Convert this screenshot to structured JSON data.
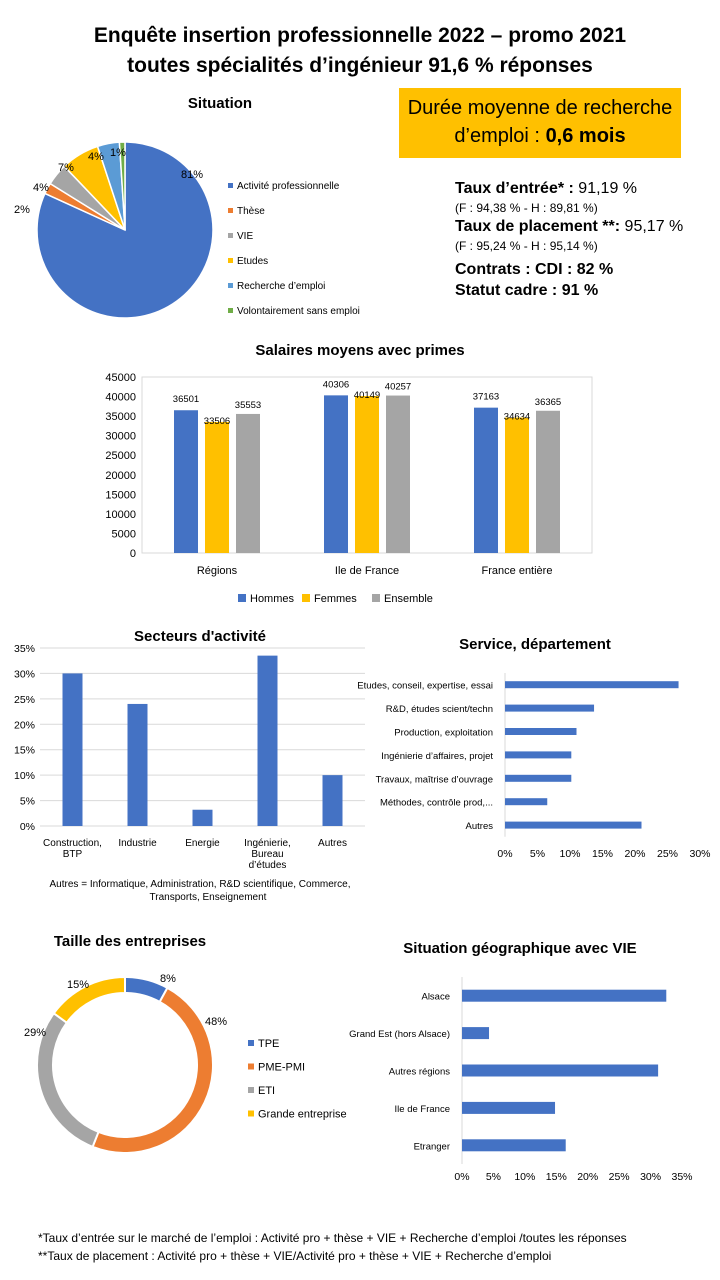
{
  "header": {
    "line1": "Enquête insertion professionnelle 2022 – promo 2021",
    "line2": "toutes spécialités d’ingénieur 91,6 % réponses"
  },
  "duree": {
    "line1": "Durée moyenne de recherche",
    "line2_prefix": "d’emploi :",
    "value": "0,6 mois"
  },
  "taux": {
    "entree_label": "Taux d’entrée* :",
    "entree_value": "91,19 %",
    "entree_detail": "(F : 94,38 % - H : 89,81 %)",
    "placement_label": "Taux de placement **:",
    "placement_value": "95,17 %",
    "placement_detail": "(F : 95,24 % - H : 95,14 %)",
    "contrats_label": "Contrats : CDI :",
    "contrats_value": "82 %",
    "cadre_label": "Statut cadre :",
    "cadre_value": "91 %"
  },
  "colors": {
    "blue": "#4472C4",
    "orange": "#ED7D31",
    "gray": "#A5A5A5",
    "yellow": "#FFC000",
    "lightblue": "#5B9BD5",
    "green": "#70AD47",
    "box": "#FFC000"
  },
  "chart_data": [
    {
      "id": "situation",
      "type": "pie",
      "title": "Situation",
      "labels": [
        "Activité professionnelle",
        "Thèse",
        "VIE",
        "Etudes",
        "Recherche d’emploi",
        "Volontairement sans emploi"
      ],
      "values": [
        81,
        2,
        4,
        7,
        4,
        1
      ],
      "value_labels": [
        "81%",
        "2%",
        "4%",
        "7%",
        "4%",
        "1%"
      ],
      "colors": [
        "#4472C4",
        "#ED7D31",
        "#A5A5A5",
        "#FFC000",
        "#5B9BD5",
        "#70AD47"
      ],
      "legend": "right"
    },
    {
      "id": "salaires",
      "type": "bar",
      "title": "Salaires moyens avec primes",
      "categories": [
        "Régions",
        "Ile de France",
        "France entière"
      ],
      "series": [
        {
          "name": "Hommes",
          "values": [
            36501,
            40306,
            37163
          ],
          "color": "#4472C4"
        },
        {
          "name": "Femmes",
          "values": [
            33506,
            40149,
            34634
          ],
          "color": "#FFC000"
        },
        {
          "name": "Ensemble",
          "values": [
            35553,
            40257,
            36365
          ],
          "color": "#A5A5A5"
        }
      ],
      "ylim": [
        0,
        45000
      ],
      "yticks": [
        "0",
        "5000",
        "10000",
        "15000",
        "20000",
        "25000",
        "30000",
        "35000",
        "40000",
        "45000"
      ],
      "legend": "bottom"
    },
    {
      "id": "secteurs",
      "type": "bar",
      "title": "Secteurs d'activité",
      "categories": [
        "Construction, BTP",
        "Industrie",
        "Energie",
        "Ingénierie, Bureau d’études",
        "Autres"
      ],
      "category_lines": [
        [
          "Construction,",
          "BTP"
        ],
        [
          "Industrie"
        ],
        [
          "Energie"
        ],
        [
          "Ingénierie,",
          "Bureau",
          "d’études"
        ],
        [
          "Autres"
        ]
      ],
      "values": [
        30,
        24,
        3.2,
        33.5,
        10
      ],
      "ylim": [
        0,
        35
      ],
      "yticks": [
        "0%",
        "5%",
        "10%",
        "15%",
        "20%",
        "25%",
        "30%",
        "35%"
      ],
      "note_line1": "Autres = Informatique,   Administration,   R&D scientifique,   Commerce,",
      "note_line2": "Transports,   Enseignement",
      "color": "#4472C4"
    },
    {
      "id": "service",
      "type": "bar",
      "orientation": "horizontal",
      "title": "Service, département",
      "categories": [
        "Etudes, conseil, expertise, essai",
        "R&D, études scient/techn",
        "Production, exploitation",
        "Ingénierie d’affaires, projet",
        "Travaux, maîtrise d’ouvrage",
        "Méthodes, contrôle prod,...",
        "Autres"
      ],
      "values": [
        26.7,
        13.7,
        11,
        10.2,
        10.2,
        6.5,
        21
      ],
      "xlim": [
        0,
        30
      ],
      "xticks": [
        "0%",
        "5%",
        "10%",
        "15%",
        "20%",
        "25%",
        "30%"
      ],
      "color": "#4472C4"
    },
    {
      "id": "taille",
      "type": "pie",
      "style": "doughnut",
      "title": "Taille des entreprises",
      "labels": [
        "TPE",
        "PME-PMI",
        "ETI",
        "Grande entreprise"
      ],
      "values": [
        8,
        48,
        29,
        15
      ],
      "value_labels": [
        "8%",
        "48%",
        "29%",
        "15%"
      ],
      "colors": [
        "#4472C4",
        "#ED7D31",
        "#A5A5A5",
        "#FFC000"
      ],
      "legend": "right"
    },
    {
      "id": "geo",
      "type": "bar",
      "orientation": "horizontal",
      "title": "Situation géographique avec VIE",
      "categories": [
        "Alsace",
        "Grand Est (hors Alsace)",
        "Autres régions",
        "Ile de France",
        "Etranger"
      ],
      "values": [
        32.5,
        4.3,
        31.2,
        14.8,
        16.5
      ],
      "xlim": [
        0,
        35
      ],
      "xticks": [
        "0%",
        "5%",
        "10%",
        "15%",
        "20%",
        "25%",
        "30%",
        "35%"
      ],
      "color": "#4472C4"
    }
  ],
  "footer": {
    "line1": "*Taux d’entrée sur le marché de l’emploi : Activité pro + thèse + VIE + Recherche d’emploi /toutes les réponses",
    "line2": "**Taux de placement : Activité pro + thèse + VIE/Activité pro + thèse + VIE + Recherche d’emploi"
  }
}
